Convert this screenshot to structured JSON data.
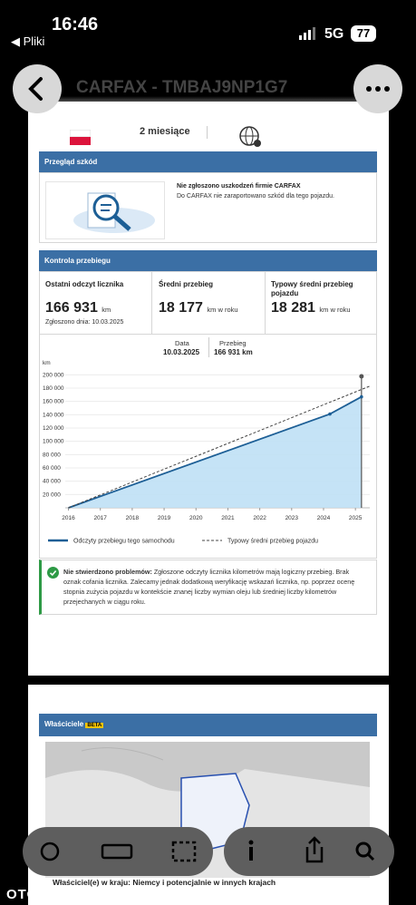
{
  "status_bar": {
    "time": "16:46",
    "back": "◀ Pliki",
    "network": "5G",
    "battery": "77"
  },
  "header": {
    "title": "CARFAX - TMBAJ9NP1G7"
  },
  "summary": {
    "period": "2 miesiące"
  },
  "damage": {
    "title": "Przegląd szkód",
    "heading": "Nie zgłoszono uszkodzeń firmie CARFAX",
    "text": "Do CARFAX nie zaraportowano szkód dla tego pojazdu."
  },
  "mileage": {
    "title": "Kontrola przebiegu",
    "cards": [
      {
        "label": "Ostatni odczyt licznika",
        "value": "166 931",
        "unit": "km",
        "note": "Zgłoszono dnia: 10.03.2025"
      },
      {
        "label": "Średni przebieg",
        "value": "18 177",
        "unit": "km w roku"
      },
      {
        "label": "Typowy średni przebieg pojazdu",
        "value": "18 281",
        "unit": "km w roku"
      }
    ],
    "tooltip": {
      "date_label": "Data",
      "date": "10.03.2025",
      "mileage_label": "Przebieg",
      "mileage": "166 931 km"
    }
  },
  "chart_data": {
    "type": "line",
    "y_label": "km",
    "xlim": [
      2015.9,
      2025.45
    ],
    "xticks": [
      2016,
      2017,
      2018,
      2019,
      2020,
      2021,
      2022,
      2023,
      2024,
      2025
    ],
    "ylim": [
      0,
      210000
    ],
    "yticks": [
      {
        "value": 20000,
        "label": "20 000"
      },
      {
        "value": 40000,
        "label": "40 000"
      },
      {
        "value": 60000,
        "label": "60 000"
      },
      {
        "value": 80000,
        "label": "80 000"
      },
      {
        "value": 100000,
        "label": "100 000"
      },
      {
        "value": 120000,
        "label": "120 000"
      },
      {
        "value": 140000,
        "label": "140 000"
      },
      {
        "value": 160000,
        "label": "160 000"
      },
      {
        "value": 180000,
        "label": "180 000"
      },
      {
        "value": 200000,
        "label": "200 000"
      }
    ],
    "grid": true,
    "series": [
      {
        "name": "Odczyty przebiegu tego samochodu",
        "color": "#1d5f96",
        "area_color": "#bfe0f5",
        "style": "solid",
        "x": [
          2016.0,
          2024.2,
          2025.19
        ],
        "values": [
          0,
          141000,
          166931
        ]
      },
      {
        "name": "Typowy średni przebieg pojazdu",
        "color": "#444444",
        "style": "dashed",
        "x": [
          2016.0,
          2025.45
        ],
        "values": [
          0,
          183000
        ]
      }
    ]
  },
  "notice": {
    "heading": "Nie stwierdzono problemów:",
    "text": "Zgłoszone odczyty licznika kilometrów mają logiczny przebieg. Brak oznak cofania licznika. Zalecamy jednak dodatkową weryfikację wskazań licznika, np. poprzez ocenę stopnia zużycia pojazdu w kontekście znanej liczby wymian oleju lub średniej liczby kilometrów przejechanych w ciągu roku."
  },
  "owners": {
    "title": "Właściciele",
    "badge": "BETA",
    "footer": "Właściciel(e) w kraju: Niemcy i potencjalnie w innych krajach"
  },
  "brand": "OTOMOTO"
}
